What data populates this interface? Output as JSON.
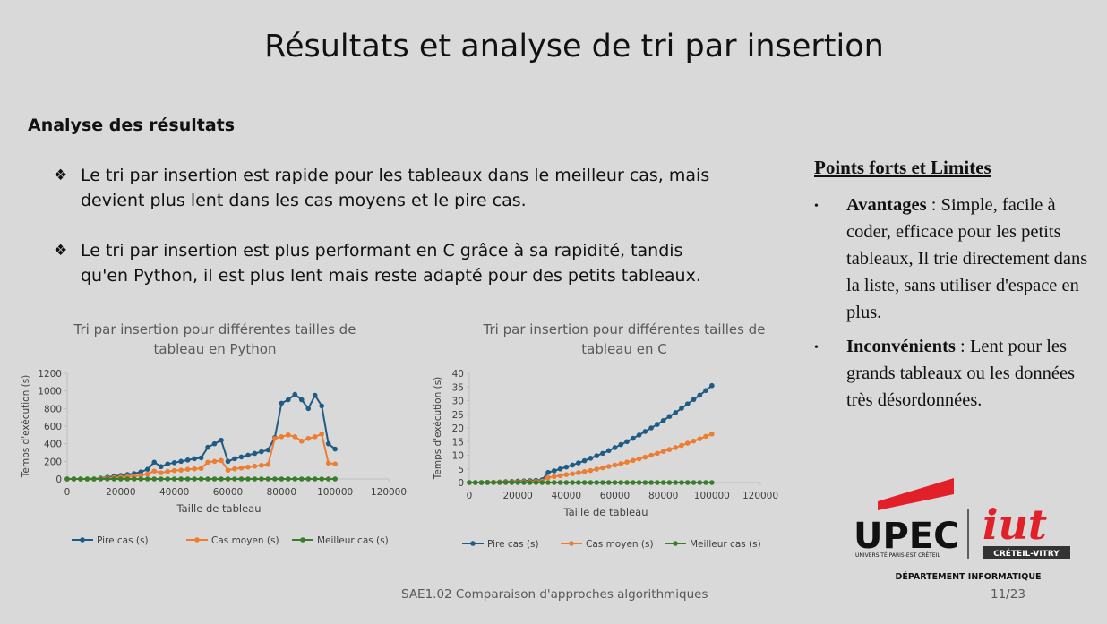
{
  "title": "Résultats et analyse de tri par insertion",
  "section": "Analyse des résultats",
  "bullets": [
    "Le tri par insertion est rapide pour les tableaux dans le meilleur cas, mais devient plus lent dans les cas moyens et le pire cas.",
    "Le tri par insertion est plus performant en C grâce à sa rapidité, tandis qu'en Python, il est plus lent mais reste adapté pour des petits tableaux."
  ],
  "side": {
    "heading": "Points forts et Limites",
    "items": [
      {
        "label": "Avantages",
        "text": " : Simple, facile à coder, efficace pour les petits tableaux, Il trie directement dans la liste, sans utiliser d'espace en plus."
      },
      {
        "label": "Inconvénients",
        "text": " : Lent pour les grands tableaux ou les données très désordonnées."
      }
    ]
  },
  "logo": {
    "upec": "UPEC",
    "upec_sub": "UNIVERSITÉ PARIS-EST CRÉTEIL",
    "iut": "iut",
    "iut_sub": "CRÉTEIL-VITRY",
    "department": "DÉPARTEMENT INFORMATIQUE"
  },
  "footer": "SAE1.02 Comparaison d'approches algorithmiques",
  "page": "11/23",
  "chart_data": [
    {
      "type": "line",
      "title": "Tri par insertion pour différentes tailles de tableau en Python",
      "x_label": "Taille de tableau",
      "y_label": "Temps d'exécution (s)",
      "x": [
        0,
        2500,
        5000,
        7500,
        10000,
        12500,
        15000,
        17500,
        20000,
        22500,
        25000,
        27500,
        30000,
        32500,
        35000,
        37500,
        40000,
        42500,
        45000,
        47500,
        50000,
        52500,
        55000,
        57500,
        60000,
        62500,
        65000,
        67500,
        70000,
        72500,
        75000,
        77500,
        80000,
        82500,
        85000,
        87500,
        90000,
        92500,
        95000,
        97500,
        100000
      ],
      "xlim": [
        0,
        120000
      ],
      "xticks": [
        0,
        20000,
        40000,
        60000,
        80000,
        100000,
        120000
      ],
      "ylim": [
        0,
        1200
      ],
      "yticks": [
        0,
        200,
        400,
        600,
        800,
        1000,
        1200
      ],
      "series": [
        {
          "name": "Pire cas (s)",
          "color": "#1f5c85",
          "values": [
            0,
            0,
            0,
            0,
            0,
            10,
            20,
            30,
            40,
            50,
            60,
            80,
            110,
            190,
            140,
            170,
            185,
            200,
            215,
            230,
            240,
            360,
            400,
            440,
            200,
            230,
            250,
            270,
            290,
            310,
            330,
            470,
            860,
            900,
            960,
            900,
            800,
            950,
            830,
            400,
            340
          ]
        },
        {
          "name": "Cas moyen (s)",
          "color": "#ed7d31",
          "values": [
            0,
            0,
            0,
            0,
            0,
            5,
            10,
            15,
            20,
            25,
            30,
            40,
            55,
            90,
            70,
            85,
            95,
            100,
            110,
            115,
            120,
            190,
            200,
            210,
            100,
            115,
            125,
            135,
            145,
            155,
            165,
            460,
            480,
            500,
            480,
            430,
            460,
            480,
            510,
            180,
            170
          ]
        },
        {
          "name": "Meilleur cas (s)",
          "color": "#3a7d2c",
          "values": [
            0,
            0,
            0,
            0,
            0,
            0,
            0,
            0,
            0,
            0,
            0,
            0,
            0,
            0,
            0,
            0,
            0,
            0,
            0,
            0,
            0,
            0,
            0,
            0,
            0,
            0,
            0,
            0,
            0,
            0,
            0,
            0,
            0,
            0,
            0,
            0,
            0,
            0,
            0,
            0,
            0
          ]
        }
      ]
    },
    {
      "type": "line",
      "title": "Tri par insertion pour différentes tailles de tableau en C",
      "x_label": "Taille de tableau",
      "y_label": "Temps d'exécution (s)",
      "x": [
        0,
        2500,
        5000,
        7500,
        10000,
        12500,
        15000,
        17500,
        20000,
        22500,
        25000,
        27500,
        30000,
        32500,
        35000,
        37500,
        40000,
        42500,
        45000,
        47500,
        50000,
        52500,
        55000,
        57500,
        60000,
        62500,
        65000,
        67500,
        70000,
        72500,
        75000,
        77500,
        80000,
        82500,
        85000,
        87500,
        90000,
        92500,
        95000,
        97500,
        100000
      ],
      "xlim": [
        0,
        120000
      ],
      "xticks": [
        0,
        20000,
        40000,
        60000,
        80000,
        100000,
        120000
      ],
      "ylim": [
        0,
        40
      ],
      "yticks": [
        0,
        5,
        10,
        15,
        20,
        25,
        30,
        35,
        40
      ],
      "series": [
        {
          "name": "Pire cas (s)",
          "color": "#1f5c85",
          "values": [
            0,
            0,
            0,
            0.1,
            0.1,
            0.2,
            0.3,
            0.4,
            0.5,
            0.6,
            0.7,
            0.8,
            1.0,
            3.7,
            4.3,
            5.0,
            5.7,
            6.4,
            7.2,
            8.0,
            8.9,
            9.8,
            10.7,
            11.7,
            12.8,
            13.9,
            15.0,
            16.2,
            17.4,
            18.7,
            20.0,
            21.3,
            22.7,
            24.2,
            25.6,
            27.2,
            28.8,
            30.4,
            32.0,
            33.7,
            35.5
          ]
        },
        {
          "name": "Cas moyen (s)",
          "color": "#ed7d31",
          "values": [
            0,
            0,
            0,
            0,
            0.1,
            0.1,
            0.1,
            0.2,
            0.2,
            0.3,
            0.3,
            0.4,
            0.5,
            1.8,
            2.2,
            2.5,
            2.9,
            3.2,
            3.6,
            4.0,
            4.4,
            4.9,
            5.4,
            5.9,
            6.4,
            6.9,
            7.5,
            8.1,
            8.7,
            9.3,
            10.0,
            10.7,
            11.4,
            12.1,
            12.8,
            13.6,
            14.4,
            15.2,
            16.0,
            16.9,
            17.8
          ]
        },
        {
          "name": "Meilleur cas (s)",
          "color": "#3a7d2c",
          "values": [
            0,
            0,
            0,
            0,
            0,
            0,
            0,
            0,
            0,
            0,
            0,
            0,
            0,
            0,
            0,
            0,
            0,
            0,
            0,
            0,
            0,
            0,
            0,
            0,
            0,
            0,
            0,
            0,
            0,
            0,
            0,
            0,
            0,
            0,
            0,
            0,
            0,
            0,
            0,
            0,
            0
          ]
        }
      ]
    }
  ]
}
